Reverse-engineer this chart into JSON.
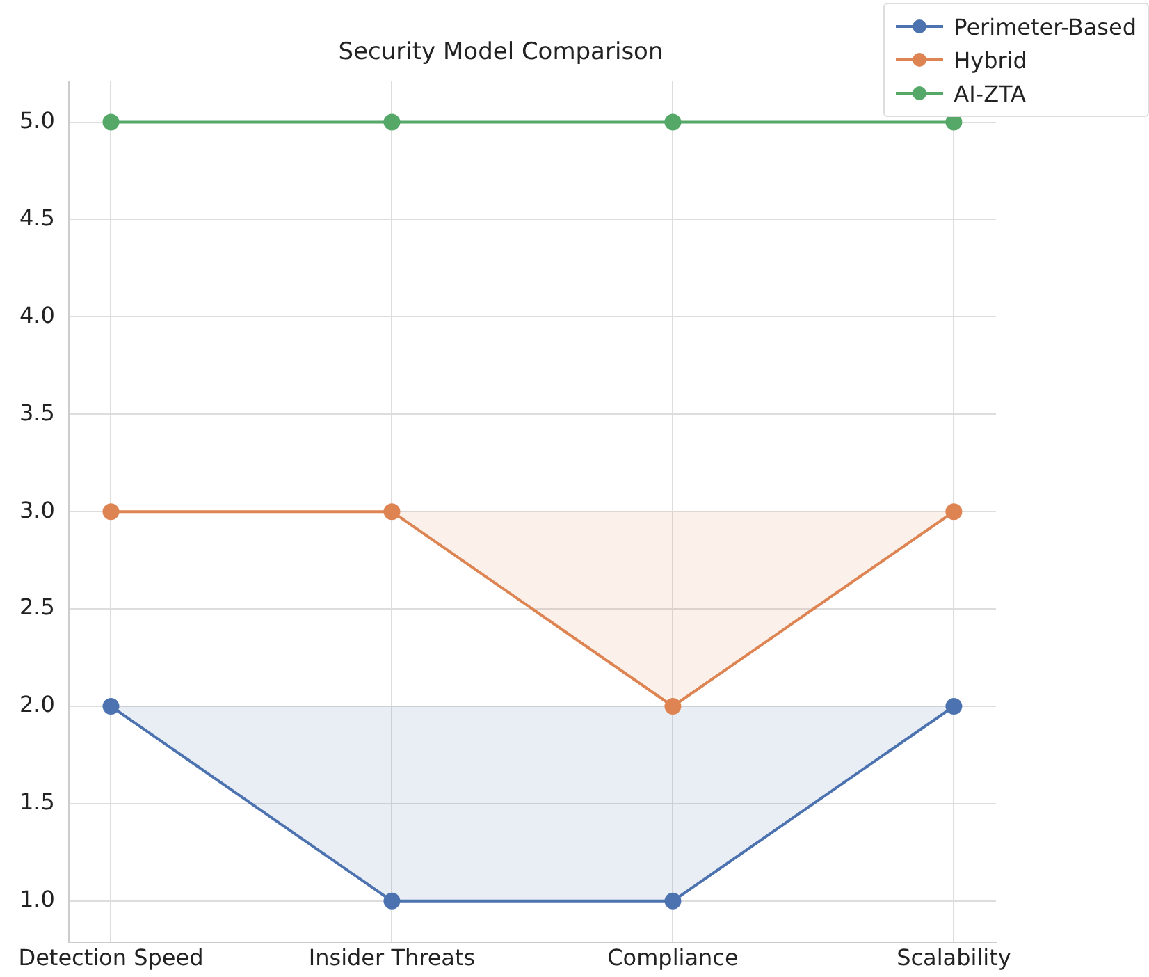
{
  "chart_data": {
    "type": "line",
    "title": "Security Model Comparison",
    "categories": [
      "Detection Speed",
      "Insider Threats",
      "Compliance",
      "Scalability"
    ],
    "series": [
      {
        "name": "Perimeter-Based",
        "color": "#4c72b0",
        "values": [
          2,
          1,
          1,
          2
        ]
      },
      {
        "name": "Hybrid",
        "color": "#dd8452",
        "values": [
          3,
          3,
          2,
          3
        ]
      },
      {
        "name": "AI-ZTA",
        "color": "#55a868",
        "values": [
          5,
          5,
          5,
          5
        ]
      }
    ],
    "ylim": [
      0.79,
      5.21
    ],
    "yticks": [
      {
        "value": 1,
        "label": "1.0"
      },
      1.5,
      {
        "value": 2,
        "label": "2.0"
      },
      2.5,
      {
        "value": 3,
        "label": "3.0"
      },
      3.5,
      {
        "value": 4,
        "label": "4.0"
      },
      4.5,
      {
        "value": 5,
        "label": "5.0"
      }
    ],
    "grid": true,
    "legend": "top right",
    "marker": "circle",
    "line_style": "solid"
  }
}
